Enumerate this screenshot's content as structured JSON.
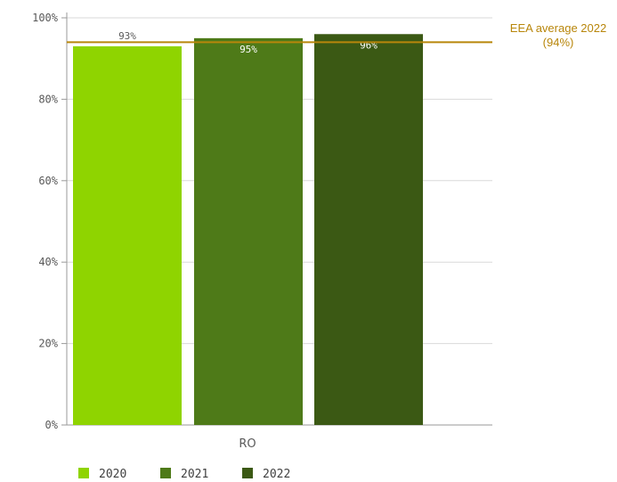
{
  "chart_data": {
    "type": "bar",
    "categories": [
      "RO"
    ],
    "series": [
      {
        "name": "2020",
        "values": [
          93
        ],
        "label": "93%",
        "color": "#8fd400"
      },
      {
        "name": "2021",
        "values": [
          95
        ],
        "label": "95%",
        "color": "#4e7a18"
      },
      {
        "name": "2022",
        "values": [
          96
        ],
        "label": "96%",
        "color": "#3b5914"
      }
    ],
    "reference_line": {
      "value": 94,
      "label_line1": "EEA average 2022",
      "label_line2": "(94%)",
      "color": "#b8860b"
    },
    "y_ticks": [
      "0%",
      "20%",
      "40%",
      "60%",
      "80%",
      "100%"
    ],
    "ylim": [
      0,
      100
    ],
    "grid": true,
    "legend_position": "bottom-left"
  }
}
